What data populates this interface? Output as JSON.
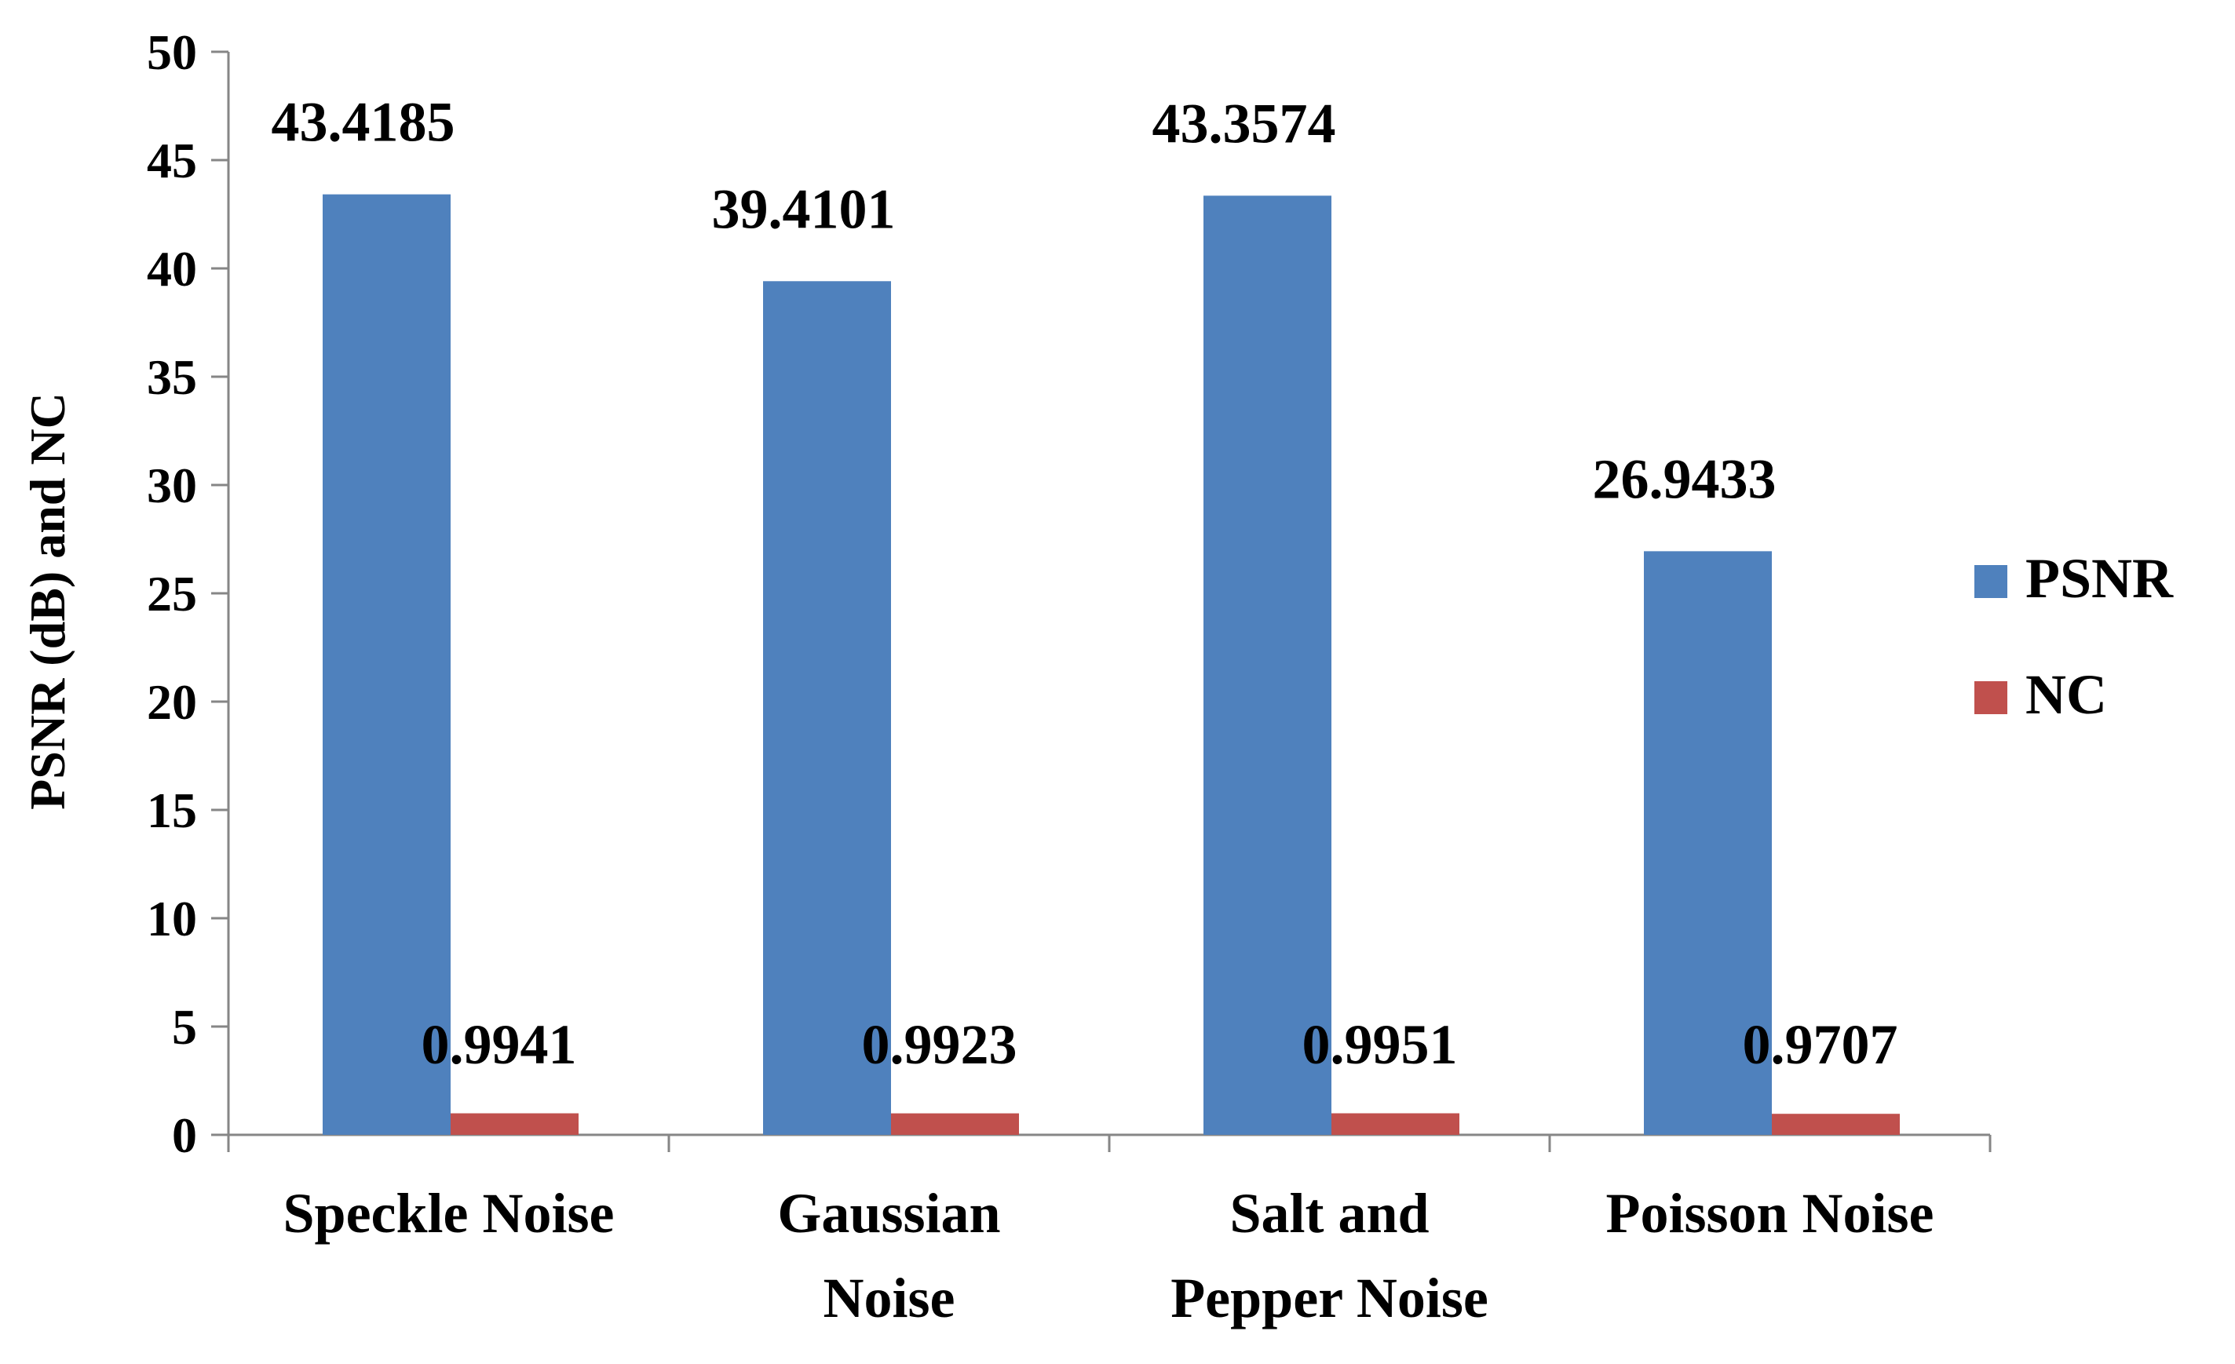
{
  "chart_data": {
    "type": "bar",
    "title": "",
    "xlabel": "",
    "ylabel": "PSNR (dB) and NC",
    "ylim": [
      0,
      50
    ],
    "yticks": [
      0,
      5,
      10,
      15,
      20,
      25,
      30,
      35,
      40,
      45,
      50
    ],
    "categories": [
      [
        "Speckle Noise"
      ],
      [
        "Gaussian",
        "Noise"
      ],
      [
        "Salt and",
        "Pepper Noise"
      ],
      [
        "Poisson Noise"
      ]
    ],
    "series": [
      {
        "name": "PSNR",
        "color": "#4F81BD",
        "values": [
          43.4185,
          39.4101,
          43.3574,
          26.9433
        ],
        "labels": [
          "43.4185",
          "39.4101",
          "43.3574",
          "26.9433"
        ]
      },
      {
        "name": "NC",
        "color": "#C0504D",
        "values": [
          0.9941,
          0.9923,
          0.9951,
          0.9707
        ],
        "labels": [
          "0.9941",
          "0.9923",
          "0.9951",
          "0.9707"
        ]
      }
    ],
    "grid": false,
    "legend": "right"
  }
}
